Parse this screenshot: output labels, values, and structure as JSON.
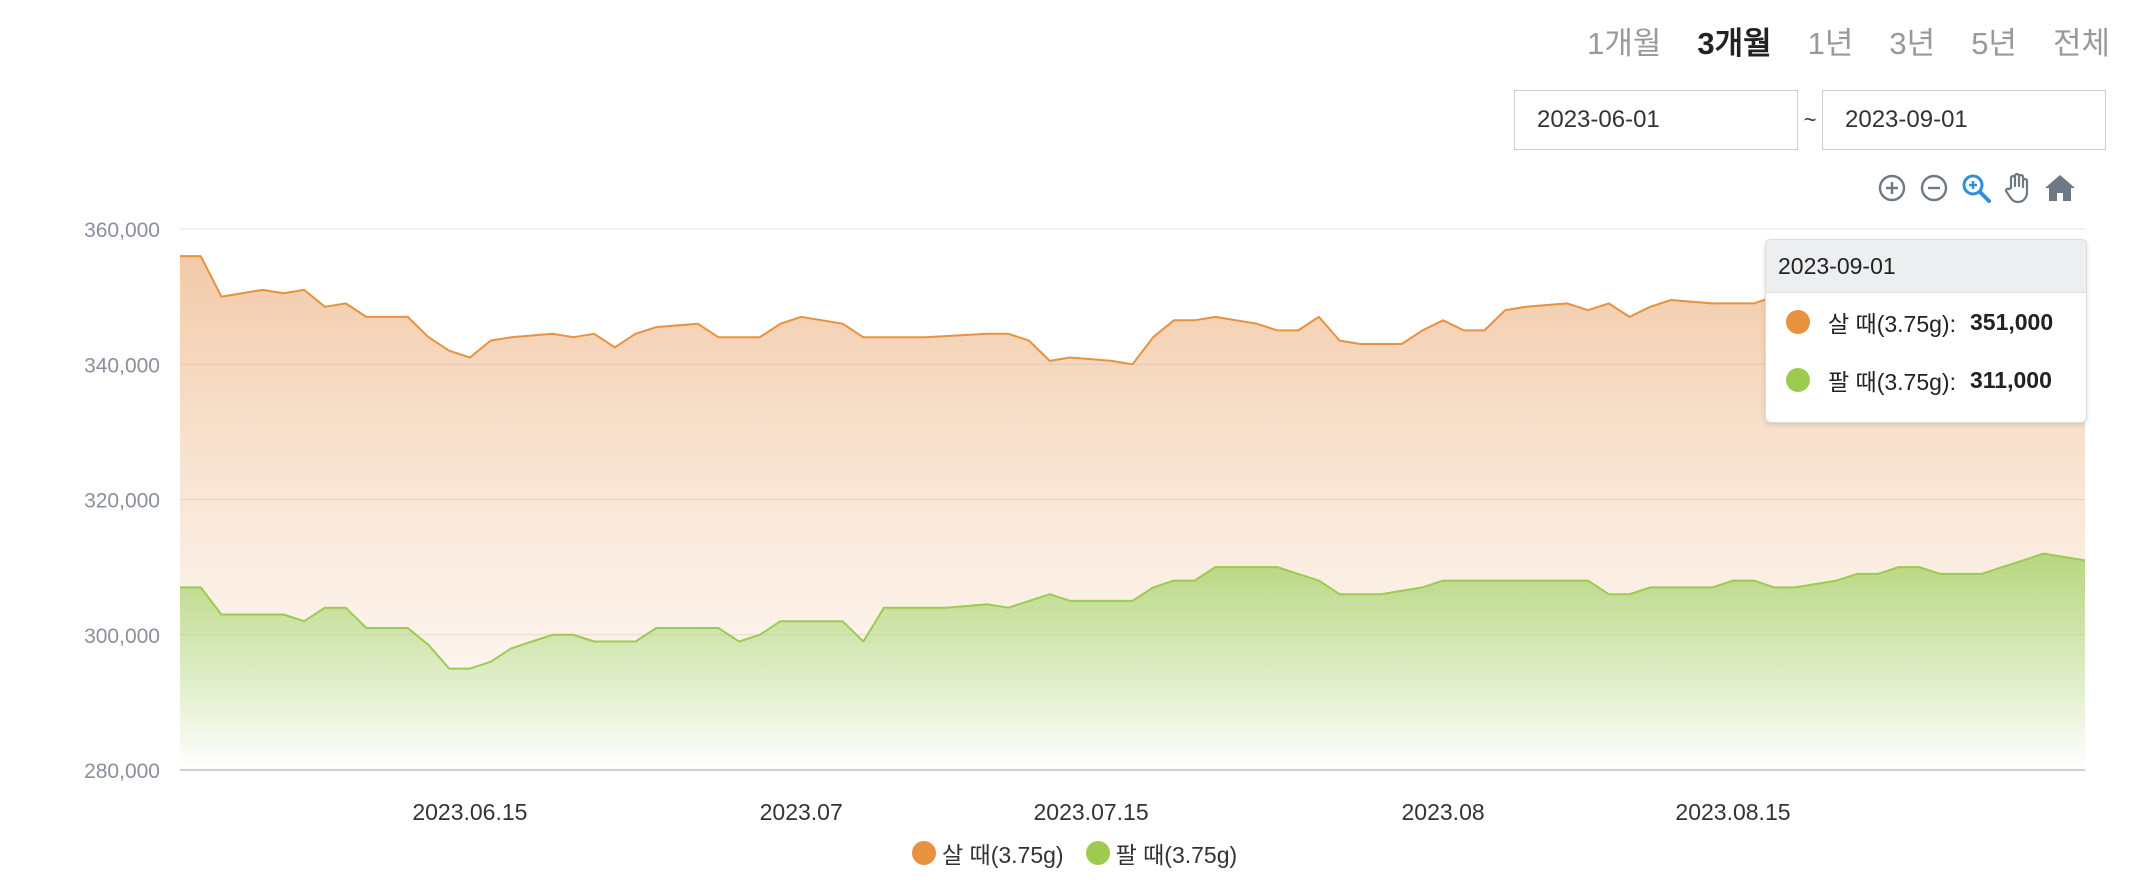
{
  "range_tabs": [
    {
      "label": "1개월",
      "active": false
    },
    {
      "label": "3개월",
      "active": true
    },
    {
      "label": "1년",
      "active": false
    },
    {
      "label": "3년",
      "active": false
    },
    {
      "label": "5년",
      "active": false
    },
    {
      "label": "전체",
      "active": false
    }
  ],
  "date_range": {
    "start": "2023-06-01",
    "separator": "~",
    "end": "2023-09-01"
  },
  "toolbar": {
    "icons": [
      "zoom-in-icon",
      "zoom-out-icon",
      "selection-zoom-icon",
      "pan-hand-icon",
      "reset-home-icon"
    ],
    "active_color": "#2f8ee0",
    "icon_color": "#6e7985"
  },
  "tooltip": {
    "title": "2023-09-01",
    "rows": [
      {
        "label": "살 때(3.75g):",
        "value": "351,000",
        "color": "#e8913f"
      },
      {
        "label": "팔 때(3.75g):",
        "value": "311,000",
        "color": "#9dcb50"
      }
    ]
  },
  "legend": [
    {
      "label": "살 때(3.75g)",
      "color": "#e8913f"
    },
    {
      "label": "팔 때(3.75g)",
      "color": "#9dcb50"
    }
  ],
  "chart_data": {
    "type": "area",
    "title": "",
    "xlabel": "",
    "ylabel": "",
    "x_range": [
      "2023-06-01",
      "2023-09-01"
    ],
    "ylim": [
      280000,
      360000
    ],
    "y_ticks": [
      {
        "value": 280000,
        "label": "280,000"
      },
      {
        "value": 300000,
        "label": "300,000"
      },
      {
        "value": 320000,
        "label": "320,000"
      },
      {
        "value": 340000,
        "label": "340,000"
      },
      {
        "value": 360000,
        "label": "360,000"
      }
    ],
    "x_ticks": [
      {
        "date": "2023-06-15",
        "label": "2023.06.15"
      },
      {
        "date": "2023-07-01",
        "label": "2023.07"
      },
      {
        "date": "2023-07-15",
        "label": "2023.07.15"
      },
      {
        "date": "2023-08-01",
        "label": "2023.08"
      },
      {
        "date": "2023-08-15",
        "label": "2023.08.15"
      }
    ],
    "grid": true,
    "legend_position": "bottom",
    "series": [
      {
        "name": "살 때(3.75g)",
        "color": "#e8913f",
        "points": [
          [
            "2023-06-01",
            356000
          ],
          [
            "2023-06-02",
            356000
          ],
          [
            "2023-06-03",
            350000
          ],
          [
            "2023-06-05",
            351000
          ],
          [
            "2023-06-06",
            350500
          ],
          [
            "2023-06-07",
            351000
          ],
          [
            "2023-06-08",
            348500
          ],
          [
            "2023-06-09",
            349000
          ],
          [
            "2023-06-10",
            347000
          ],
          [
            "2023-06-12",
            347000
          ],
          [
            "2023-06-13",
            344000
          ],
          [
            "2023-06-14",
            342000
          ],
          [
            "2023-06-15",
            341000
          ],
          [
            "2023-06-16",
            343500
          ],
          [
            "2023-06-17",
            344000
          ],
          [
            "2023-06-19",
            344500
          ],
          [
            "2023-06-20",
            344000
          ],
          [
            "2023-06-21",
            344500
          ],
          [
            "2023-06-22",
            342500
          ],
          [
            "2023-06-23",
            344500
          ],
          [
            "2023-06-24",
            345500
          ],
          [
            "2023-06-26",
            346000
          ],
          [
            "2023-06-27",
            344000
          ],
          [
            "2023-06-29",
            344000
          ],
          [
            "2023-06-30",
            346000
          ],
          [
            "2023-07-01",
            347000
          ],
          [
            "2023-07-03",
            346000
          ],
          [
            "2023-07-04",
            344000
          ],
          [
            "2023-07-07",
            344000
          ],
          [
            "2023-07-10",
            344500
          ],
          [
            "2023-07-11",
            344500
          ],
          [
            "2023-07-12",
            343500
          ],
          [
            "2023-07-13",
            340500
          ],
          [
            "2023-07-14",
            341000
          ],
          [
            "2023-07-16",
            340500
          ],
          [
            "2023-07-17",
            340000
          ],
          [
            "2023-07-18",
            344000
          ],
          [
            "2023-07-19",
            346500
          ],
          [
            "2023-07-20",
            346500
          ],
          [
            "2023-07-21",
            347000
          ],
          [
            "2023-07-23",
            346000
          ],
          [
            "2023-07-24",
            345000
          ],
          [
            "2023-07-25",
            345000
          ],
          [
            "2023-07-26",
            347000
          ],
          [
            "2023-07-27",
            343500
          ],
          [
            "2023-07-28",
            343000
          ],
          [
            "2023-07-30",
            343000
          ],
          [
            "2023-07-31",
            345000
          ],
          [
            "2023-08-01",
            346500
          ],
          [
            "2023-08-02",
            345000
          ],
          [
            "2023-08-03",
            345000
          ],
          [
            "2023-08-04",
            348000
          ],
          [
            "2023-08-05",
            348500
          ],
          [
            "2023-08-07",
            349000
          ],
          [
            "2023-08-08",
            348000
          ],
          [
            "2023-08-09",
            349000
          ],
          [
            "2023-08-10",
            347000
          ],
          [
            "2023-08-11",
            348500
          ],
          [
            "2023-08-12",
            349500
          ],
          [
            "2023-08-14",
            349000
          ],
          [
            "2023-08-16",
            349000
          ],
          [
            "2023-08-17",
            350000
          ],
          [
            "2023-08-18",
            349500
          ],
          [
            "2023-08-22",
            350000
          ],
          [
            "2023-08-25",
            350000
          ],
          [
            "2023-08-28",
            350500
          ],
          [
            "2023-08-30",
            351000
          ],
          [
            "2023-09-01",
            351000
          ]
        ]
      },
      {
        "name": "팔 때(3.75g)",
        "color": "#9dcb50",
        "points": [
          [
            "2023-06-01",
            307000
          ],
          [
            "2023-06-02",
            307000
          ],
          [
            "2023-06-03",
            303000
          ],
          [
            "2023-06-06",
            303000
          ],
          [
            "2023-06-07",
            302000
          ],
          [
            "2023-06-08",
            304000
          ],
          [
            "2023-06-09",
            304000
          ],
          [
            "2023-06-10",
            301000
          ],
          [
            "2023-06-12",
            301000
          ],
          [
            "2023-06-13",
            298500
          ],
          [
            "2023-06-14",
            295000
          ],
          [
            "2023-06-15",
            295000
          ],
          [
            "2023-06-16",
            296000
          ],
          [
            "2023-06-17",
            298000
          ],
          [
            "2023-06-18",
            299000
          ],
          [
            "2023-06-19",
            300000
          ],
          [
            "2023-06-20",
            300000
          ],
          [
            "2023-06-21",
            299000
          ],
          [
            "2023-06-23",
            299000
          ],
          [
            "2023-06-24",
            301000
          ],
          [
            "2023-06-27",
            301000
          ],
          [
            "2023-06-28",
            299000
          ],
          [
            "2023-06-29",
            300000
          ],
          [
            "2023-06-30",
            302000
          ],
          [
            "2023-07-03",
            302000
          ],
          [
            "2023-07-04",
            299000
          ],
          [
            "2023-07-05",
            304000
          ],
          [
            "2023-07-08",
            304000
          ],
          [
            "2023-07-10",
            304500
          ],
          [
            "2023-07-11",
            304000
          ],
          [
            "2023-07-12",
            305000
          ],
          [
            "2023-07-13",
            306000
          ],
          [
            "2023-07-14",
            305000
          ],
          [
            "2023-07-16",
            305000
          ],
          [
            "2023-07-17",
            305000
          ],
          [
            "2023-07-18",
            307000
          ],
          [
            "2023-07-19",
            308000
          ],
          [
            "2023-07-20",
            308000
          ],
          [
            "2023-07-21",
            310000
          ],
          [
            "2023-07-24",
            310000
          ],
          [
            "2023-07-25",
            309000
          ],
          [
            "2023-07-26",
            308000
          ],
          [
            "2023-07-27",
            306000
          ],
          [
            "2023-07-29",
            306000
          ],
          [
            "2023-07-31",
            307000
          ],
          [
            "2023-08-01",
            308000
          ],
          [
            "2023-08-08",
            308000
          ],
          [
            "2023-08-09",
            306000
          ],
          [
            "2023-08-10",
            306000
          ],
          [
            "2023-08-11",
            307000
          ],
          [
            "2023-08-14",
            307000
          ],
          [
            "2023-08-15",
            308000
          ],
          [
            "2023-08-16",
            308000
          ],
          [
            "2023-08-17",
            307000
          ],
          [
            "2023-08-18",
            307000
          ],
          [
            "2023-08-20",
            308000
          ],
          [
            "2023-08-21",
            309000
          ],
          [
            "2023-08-22",
            309000
          ],
          [
            "2023-08-23",
            310000
          ],
          [
            "2023-08-24",
            310000
          ],
          [
            "2023-08-25",
            309000
          ],
          [
            "2023-08-27",
            309000
          ],
          [
            "2023-08-28",
            310000
          ],
          [
            "2023-08-29",
            311000
          ],
          [
            "2023-08-30",
            312000
          ],
          [
            "2023-09-01",
            311000
          ]
        ]
      }
    ]
  }
}
